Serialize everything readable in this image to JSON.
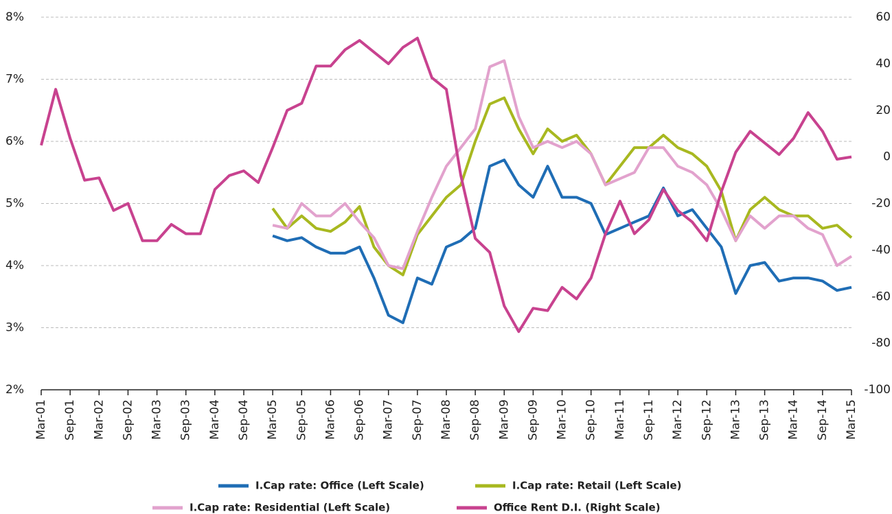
{
  "chart_data": {
    "type": "line",
    "categories": [
      "Mar-01",
      null,
      "Sep-01",
      null,
      "Mar-02",
      null,
      "Sep-02",
      null,
      "Mar-03",
      null,
      "Sep-03",
      null,
      "Mar-04",
      null,
      "Sep-04",
      null,
      "Mar-05",
      null,
      "Sep-05",
      null,
      "Mar-06",
      null,
      "Sep-06",
      null,
      "Mar-07",
      null,
      "Sep-07",
      null,
      "Mar-08",
      null,
      "Sep-08",
      null,
      "Mar-09",
      null,
      "Sep-09",
      null,
      "Mar-10",
      null,
      "Sep-10",
      null,
      "Mar-11",
      null,
      "Sep-11",
      null,
      "Mar-12",
      null,
      "Sep-12",
      null,
      "Mar-13",
      null,
      "Sep-13",
      null,
      "Mar-14",
      null,
      "Sep-14",
      null,
      "Mar-15"
    ],
    "series": [
      {
        "name": "I.Cap rate: Office (Left Scale)",
        "color": "#1f6db5",
        "values": [
          null,
          null,
          null,
          null,
          null,
          null,
          null,
          null,
          null,
          null,
          null,
          null,
          null,
          null,
          null,
          null,
          4.48,
          4.4,
          4.45,
          4.3,
          4.2,
          4.2,
          4.3,
          3.8,
          3.2,
          3.08,
          3.8,
          3.7,
          4.3,
          4.4,
          4.6,
          5.6,
          5.7,
          5.3,
          5.1,
          5.6,
          5.1,
          5.1,
          5.0,
          4.5,
          4.6,
          4.7,
          4.8,
          5.25,
          4.8,
          4.9,
          4.6,
          4.3,
          3.55,
          4.0,
          4.05,
          3.75,
          3.8,
          3.8,
          3.75,
          3.6,
          3.65
        ]
      },
      {
        "name": "I.Cap rate: Retail (Left Scale)",
        "color": "#a8b820",
        "values": [
          null,
          null,
          null,
          null,
          null,
          null,
          null,
          null,
          null,
          null,
          null,
          null,
          null,
          null,
          null,
          null,
          4.92,
          4.6,
          4.8,
          4.6,
          4.55,
          4.7,
          4.95,
          4.3,
          4.0,
          3.85,
          4.5,
          4.8,
          5.1,
          5.3,
          6.0,
          6.6,
          6.7,
          6.2,
          5.8,
          6.2,
          6.0,
          6.1,
          5.8,
          5.3,
          5.6,
          5.9,
          5.9,
          6.1,
          5.9,
          5.8,
          5.6,
          5.2,
          4.4,
          4.9,
          5.1,
          4.9,
          4.8,
          4.8,
          4.6,
          4.65,
          4.45
        ]
      },
      {
        "name": "I.Cap rate: Residential (Left Scale)",
        "color": "#e2a2cd",
        "values": [
          null,
          null,
          null,
          null,
          null,
          null,
          null,
          null,
          null,
          null,
          null,
          null,
          null,
          null,
          null,
          null,
          4.65,
          4.6,
          5.0,
          4.8,
          4.8,
          5.0,
          4.7,
          4.45,
          4.0,
          3.95,
          4.55,
          5.1,
          5.6,
          5.9,
          6.2,
          7.2,
          7.3,
          6.4,
          5.9,
          6.0,
          5.9,
          6.0,
          5.8,
          5.3,
          5.4,
          5.5,
          5.9,
          5.9,
          5.6,
          5.5,
          5.3,
          4.9,
          4.4,
          4.8,
          4.6,
          4.8,
          4.8,
          4.6,
          4.5,
          4.0,
          4.15
        ]
      },
      {
        "name": "Office Rent D.I. (Right Scale)",
        "color": "#c8428f",
        "axis": "y2",
        "values": [
          5,
          29,
          8,
          -10,
          -9,
          -23,
          -20,
          -36,
          -36,
          -29,
          -33,
          -33,
          -14,
          -8,
          -6,
          -11,
          4,
          20,
          23,
          39,
          39,
          46,
          50,
          45,
          40,
          47,
          51,
          34,
          29,
          -8,
          -35,
          -41,
          -64,
          -75,
          -65,
          -66,
          -56,
          -61,
          -52,
          -33,
          -19,
          -33,
          -27,
          -14,
          -23,
          -28,
          -36,
          -15,
          2,
          11,
          6,
          1,
          8,
          19,
          11,
          -1,
          0
        ]
      }
    ],
    "ylim": [
      2,
      8
    ],
    "yticks": [
      {
        "value": 2,
        "label": "2%"
      },
      {
        "value": 3,
        "label": "3%"
      },
      {
        "value": 4,
        "label": "4%"
      },
      {
        "value": 5,
        "label": "5%"
      },
      {
        "value": 6,
        "label": "6%"
      },
      {
        "value": 7,
        "label": "7%"
      },
      {
        "value": 8,
        "label": "8%"
      }
    ],
    "y2lim": [
      -100,
      60
    ],
    "y2ticks": [
      -100,
      -80,
      -60,
      -40,
      -20,
      0,
      20,
      40,
      60
    ],
    "grid": true,
    "legend": "bottom"
  }
}
